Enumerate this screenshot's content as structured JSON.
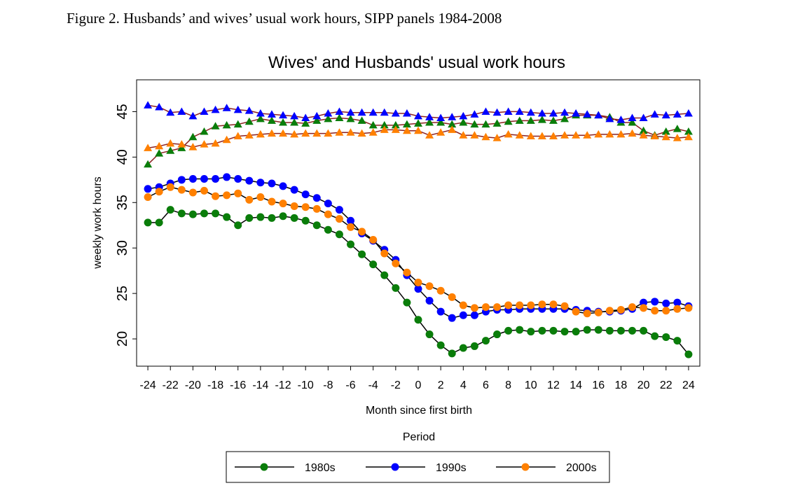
{
  "figure_caption": "Figure 2. Husbands’ and wives’ usual work hours, SIPP panels 1984-2008",
  "chart_data": {
    "type": "line",
    "title": "Wives' and Husbands' usual work hours",
    "xlabel": "Month since first birth",
    "ylabel": "weekly work hours",
    "legend_title": "Period",
    "legend_position": "bottom",
    "xlim": [
      -25,
      25
    ],
    "ylim": [
      17,
      48.5
    ],
    "xticks": [
      -24,
      -22,
      -20,
      -18,
      -16,
      -14,
      -12,
      -10,
      -8,
      -6,
      -4,
      -2,
      0,
      2,
      4,
      6,
      8,
      10,
      12,
      14,
      16,
      18,
      20,
      22,
      24
    ],
    "yticks": [
      20,
      25,
      30,
      35,
      40,
      45
    ],
    "grid": false,
    "x": [
      -24,
      -23,
      -22,
      -21,
      -20,
      -19,
      -18,
      -17,
      -16,
      -15,
      -14,
      -13,
      -12,
      -11,
      -10,
      -9,
      -8,
      -7,
      -6,
      -5,
      -4,
      -3,
      -2,
      -1,
      0,
      1,
      2,
      3,
      4,
      5,
      6,
      7,
      8,
      9,
      10,
      11,
      12,
      13,
      14,
      15,
      16,
      17,
      18,
      19,
      20,
      21,
      22,
      23,
      24
    ],
    "series": [
      {
        "name": "1980s",
        "group": "husbands",
        "marker": "triangle",
        "color": "#0a7d0a",
        "values": [
          39.2,
          40.4,
          40.7,
          41.0,
          42.2,
          42.8,
          43.4,
          43.5,
          43.6,
          43.9,
          44.2,
          44.0,
          43.8,
          43.8,
          43.7,
          44.0,
          44.2,
          44.3,
          44.2,
          44.0,
          43.5,
          43.5,
          43.5,
          43.6,
          43.7,
          43.8,
          43.8,
          43.6,
          43.8,
          43.6,
          43.6,
          43.7,
          43.9,
          44.0,
          44.0,
          44.1,
          44.0,
          44.2,
          44.6,
          44.6,
          44.6,
          44.4,
          43.8,
          43.8,
          42.9,
          42.4,
          42.8,
          43.1,
          42.8
        ]
      },
      {
        "name": "1990s",
        "group": "husbands",
        "marker": "triangle",
        "color": "#0000ff",
        "values": [
          45.7,
          45.5,
          44.9,
          45.0,
          44.5,
          45.0,
          45.2,
          45.4,
          45.2,
          45.1,
          44.8,
          44.7,
          44.6,
          44.5,
          44.3,
          44.5,
          44.8,
          45.0,
          44.9,
          44.9,
          44.9,
          44.9,
          44.8,
          44.8,
          44.5,
          44.4,
          44.3,
          44.4,
          44.5,
          44.7,
          45.0,
          44.9,
          45.0,
          45.0,
          44.9,
          44.8,
          44.8,
          44.9,
          44.8,
          44.7,
          44.6,
          44.2,
          44.1,
          44.3,
          44.3,
          44.7,
          44.6,
          44.7,
          44.8
        ]
      },
      {
        "name": "2000s",
        "group": "husbands",
        "marker": "triangle",
        "color": "#ff8000",
        "values": [
          41.0,
          41.2,
          41.5,
          41.4,
          41.1,
          41.4,
          41.5,
          41.9,
          42.3,
          42.4,
          42.5,
          42.6,
          42.6,
          42.5,
          42.6,
          42.6,
          42.6,
          42.7,
          42.7,
          42.6,
          42.7,
          43.0,
          43.0,
          42.9,
          42.9,
          42.4,
          42.7,
          43.0,
          42.4,
          42.4,
          42.2,
          42.1,
          42.5,
          42.4,
          42.3,
          42.3,
          42.3,
          42.4,
          42.4,
          42.4,
          42.5,
          42.5,
          42.5,
          42.6,
          42.4,
          42.3,
          42.2,
          42.1,
          42.2
        ]
      },
      {
        "name": "1980s",
        "group": "wives",
        "marker": "circle",
        "color": "#0a7d0a",
        "values": [
          32.8,
          32.8,
          34.2,
          33.8,
          33.7,
          33.8,
          33.8,
          33.4,
          32.5,
          33.3,
          33.4,
          33.3,
          33.5,
          33.3,
          33.0,
          32.5,
          32.0,
          31.5,
          30.4,
          29.3,
          28.2,
          27.0,
          25.6,
          24.0,
          22.1,
          20.5,
          19.3,
          18.4,
          19.0,
          19.2,
          19.8,
          20.5,
          20.9,
          21.0,
          20.8,
          20.9,
          20.9,
          20.8,
          20.8,
          21.0,
          21.0,
          20.9,
          20.9,
          20.9,
          20.9,
          20.3,
          20.2,
          19.8,
          18.3
        ]
      },
      {
        "name": "1990s",
        "group": "wives",
        "marker": "circle",
        "color": "#0000ff",
        "values": [
          36.5,
          36.7,
          37.1,
          37.5,
          37.6,
          37.6,
          37.6,
          37.8,
          37.6,
          37.4,
          37.2,
          37.1,
          36.8,
          36.4,
          35.9,
          35.5,
          34.9,
          34.2,
          33.0,
          31.6,
          30.8,
          29.8,
          28.7,
          27.0,
          25.5,
          24.2,
          23.0,
          22.3,
          22.6,
          22.6,
          23.0,
          23.2,
          23.2,
          23.3,
          23.3,
          23.3,
          23.3,
          23.3,
          23.2,
          23.1,
          23.0,
          23.0,
          23.1,
          23.3,
          24.0,
          24.1,
          23.9,
          24.0,
          23.6
        ]
      },
      {
        "name": "2000s",
        "group": "wives",
        "marker": "circle",
        "color": "#ff8000",
        "values": [
          35.6,
          36.2,
          36.7,
          36.4,
          36.1,
          36.3,
          35.7,
          35.8,
          36.0,
          35.3,
          35.6,
          35.1,
          34.9,
          34.6,
          34.5,
          34.3,
          33.7,
          33.2,
          32.3,
          31.8,
          30.9,
          29.4,
          28.3,
          27.3,
          26.2,
          25.8,
          25.3,
          24.6,
          23.7,
          23.4,
          23.5,
          23.5,
          23.7,
          23.7,
          23.7,
          23.8,
          23.8,
          23.6,
          23.0,
          22.8,
          22.9,
          23.1,
          23.2,
          23.5,
          23.4,
          23.1,
          23.1,
          23.3,
          23.4
        ]
      }
    ],
    "legend": [
      {
        "label": "1980s",
        "color": "#0a7d0a"
      },
      {
        "label": "1990s",
        "color": "#0000ff"
      },
      {
        "label": "2000s",
        "color": "#ff8000"
      }
    ]
  }
}
